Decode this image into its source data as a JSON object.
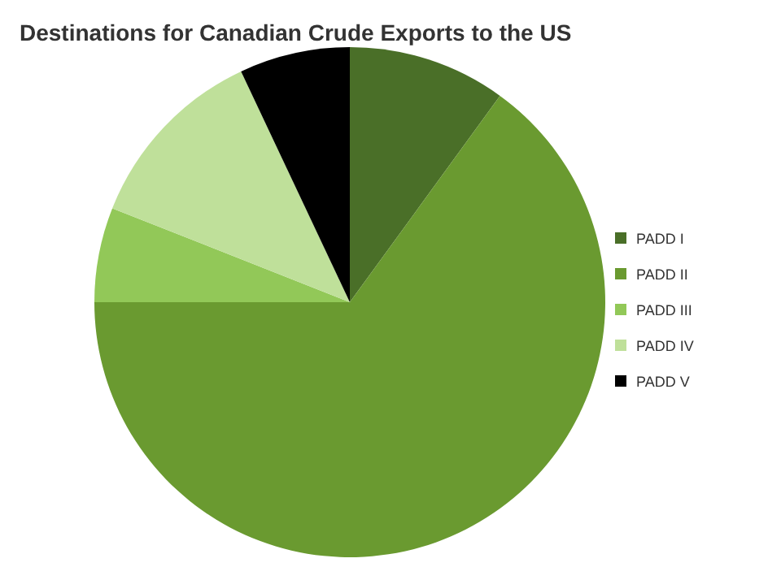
{
  "chart_data": {
    "type": "pie",
    "title": "Destinations for Canadian Crude Exports to the US",
    "categories": [
      "PADD I",
      "PADD II",
      "PADD III",
      "PADD IV",
      "PADD V"
    ],
    "values": [
      10,
      65,
      6,
      12,
      7
    ],
    "colors": [
      "#4a6f28",
      "#6a9a30",
      "#92c858",
      "#bfe09a",
      "#000000"
    ],
    "legend": "right"
  }
}
